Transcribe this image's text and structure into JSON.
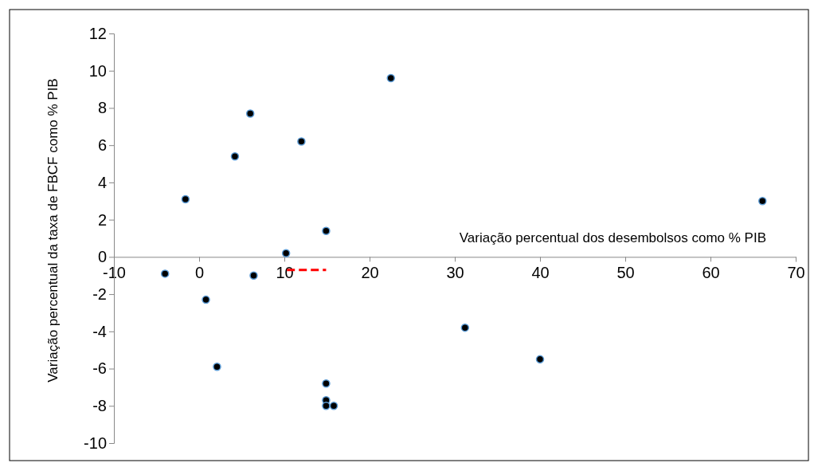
{
  "chart_data": {
    "type": "scatter",
    "xlabel": "Variação percentual dos desembolsos como % PIB",
    "ylabel": "Variação percentual da taxa de FBCF como % PIB",
    "xlim": [
      -10,
      70
    ],
    "xticks": [
      -10,
      0,
      10,
      20,
      30,
      40,
      50,
      60,
      70
    ],
    "ylim": [
      -10,
      12
    ],
    "yticks": [
      -10,
      -8,
      -6,
      -4,
      -2,
      0,
      2,
      4,
      6,
      8,
      10,
      12
    ],
    "grid": false,
    "series": [
      {
        "marker": "circle",
        "color": "#000000",
        "x": [
          -4.0,
          -1.6,
          0.8,
          2.1,
          4.2,
          6.0,
          6.4,
          10.2,
          12.0,
          14.9,
          14.9,
          14.9,
          14.9,
          15.8,
          22.5,
          31.2,
          40.0,
          66.1
        ],
        "values": [
          -0.9,
          3.1,
          -2.3,
          -5.9,
          5.4,
          7.7,
          -1.0,
          0.2,
          6.2,
          1.4,
          -6.8,
          -7.7,
          -8.0,
          -8.0,
          9.6,
          -3.8,
          -5.5,
          3.0
        ]
      },
      {
        "type": "line",
        "color": "#ff0000",
        "line_style": "dashed",
        "x": [
          10.3,
          14.9
        ],
        "values": [
          -0.7,
          -0.7
        ]
      }
    ]
  }
}
